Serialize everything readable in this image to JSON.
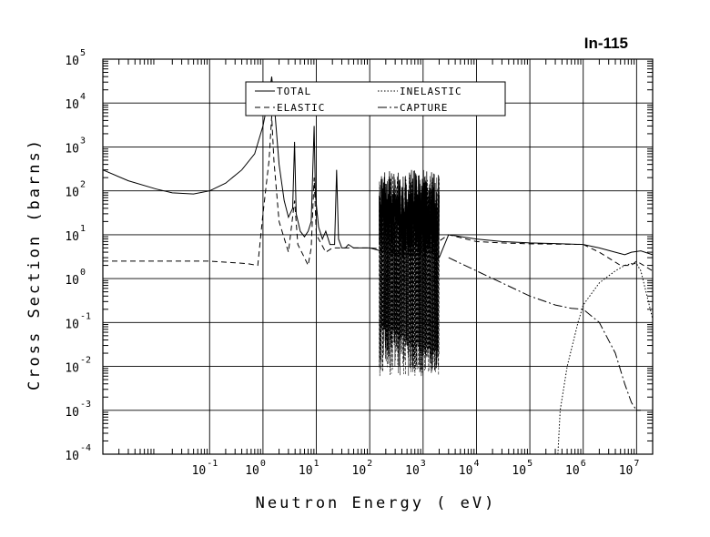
{
  "chart_data": {
    "type": "line",
    "title": "In-115",
    "xlabel": "Neutron Energy ( eV)",
    "ylabel": "Cross Section (barns)",
    "xscale": "log",
    "yscale": "log",
    "xlim": [
      0.001,
      20000000
    ],
    "ylim": [
      0.0001,
      100000
    ],
    "x_ticks": [
      {
        "base": "10",
        "exp": "-1",
        "value": 0.1
      },
      {
        "base": "10",
        "exp": "0",
        "value": 1
      },
      {
        "base": "10",
        "exp": "1",
        "value": 10
      },
      {
        "base": "10",
        "exp": "2",
        "value": 100
      },
      {
        "base": "10",
        "exp": "3",
        "value": 1000
      },
      {
        "base": "10",
        "exp": "4",
        "value": 10000
      },
      {
        "base": "10",
        "exp": "5",
        "value": 100000
      },
      {
        "base": "10",
        "exp": "6",
        "value": 1000000
      },
      {
        "base": "10",
        "exp": "7",
        "value": 10000000
      }
    ],
    "y_ticks": [
      {
        "base": "10",
        "exp": "5",
        "value": 100000
      },
      {
        "base": "10",
        "exp": "4",
        "value": 10000
      },
      {
        "base": "10",
        "exp": "3",
        "value": 1000
      },
      {
        "base": "10",
        "exp": "2",
        "value": 100
      },
      {
        "base": "10",
        "exp": "1",
        "value": 10
      },
      {
        "base": "10",
        "exp": "0",
        "value": 1
      },
      {
        "base": "10",
        "exp": "-1",
        "value": 0.1
      },
      {
        "base": "10",
        "exp": "-2",
        "value": 0.01
      },
      {
        "base": "10",
        "exp": "-3",
        "value": 0.001
      },
      {
        "base": "10",
        "exp": "-4",
        "value": 0.0001
      }
    ],
    "grid": true,
    "legend_position": "top",
    "legend": [
      {
        "label": "TOTAL",
        "dash": "solid"
      },
      {
        "label": "INELASTIC",
        "dash": "dotted"
      },
      {
        "label": "ELASTIC",
        "dash": "dashed"
      },
      {
        "label": "CAPTURE",
        "dash": "dash-dot"
      }
    ],
    "series": [
      {
        "name": "TOTAL",
        "dash": "solid",
        "points": [
          [
            0.001,
            300
          ],
          [
            0.003,
            170
          ],
          [
            0.01,
            110
          ],
          [
            0.02,
            90
          ],
          [
            0.05,
            85
          ],
          [
            0.1,
            100
          ],
          [
            0.2,
            150
          ],
          [
            0.4,
            300
          ],
          [
            0.7,
            700
          ],
          [
            1.0,
            3000
          ],
          [
            1.3,
            15000
          ],
          [
            1.46,
            40000
          ],
          [
            1.6,
            12000
          ],
          [
            2.0,
            400
          ],
          [
            2.5,
            60
          ],
          [
            3.0,
            25
          ],
          [
            3.6,
            40
          ],
          [
            3.9,
            1300
          ],
          [
            4.2,
            30
          ],
          [
            5,
            12
          ],
          [
            6,
            9
          ],
          [
            7,
            12
          ],
          [
            8,
            20
          ],
          [
            9.1,
            3000
          ],
          [
            9.6,
            80
          ],
          [
            11,
            15
          ],
          [
            13,
            8
          ],
          [
            15,
            12
          ],
          [
            18,
            6
          ],
          [
            22,
            6
          ],
          [
            24,
            300
          ],
          [
            26,
            8
          ],
          [
            30,
            5
          ],
          [
            35,
            5
          ],
          [
            40,
            6
          ],
          [
            50,
            5
          ],
          [
            60,
            5
          ],
          [
            80,
            5
          ],
          [
            100,
            5
          ],
          [
            200,
            4
          ],
          [
            2000,
            3
          ],
          [
            3000,
            10
          ],
          [
            10000,
            8
          ],
          [
            30000,
            7
          ],
          [
            100000,
            6.5
          ],
          [
            300000,
            6.3
          ],
          [
            1000000,
            6
          ],
          [
            2000000,
            5
          ],
          [
            4000000,
            4
          ],
          [
            6000000,
            3.5
          ],
          [
            8000000,
            4
          ],
          [
            12000000,
            4.3
          ],
          [
            20000000,
            3.5
          ]
        ]
      },
      {
        "name": "ELASTIC",
        "dash": "dashed",
        "points": [
          [
            0.001,
            2.5
          ],
          [
            0.1,
            2.5
          ],
          [
            0.5,
            2.2
          ],
          [
            0.8,
            2.0
          ],
          [
            1.0,
            30
          ],
          [
            1.3,
            500
          ],
          [
            1.46,
            5000
          ],
          [
            1.6,
            500
          ],
          [
            2.0,
            20
          ],
          [
            3.0,
            4
          ],
          [
            3.9,
            60
          ],
          [
            4.5,
            6
          ],
          [
            6,
            3
          ],
          [
            7,
            2
          ],
          [
            8,
            5
          ],
          [
            9.1,
            200
          ],
          [
            10,
            10
          ],
          [
            15,
            4
          ],
          [
            20,
            5
          ],
          [
            30,
            5
          ],
          [
            100,
            5
          ],
          [
            1000,
            4
          ],
          [
            3000,
            10
          ],
          [
            10000,
            7
          ],
          [
            30000,
            6.5
          ],
          [
            100000,
            6.2
          ],
          [
            300000,
            6.1
          ],
          [
            1000000,
            6
          ],
          [
            2000000,
            4
          ],
          [
            5000000,
            2
          ],
          [
            8000000,
            2
          ],
          [
            10000000,
            2.5
          ],
          [
            20000000,
            1.5
          ]
        ]
      },
      {
        "name": "CAPTURE",
        "dash": "dash-dot",
        "points": [
          [
            3000,
            3
          ],
          [
            10000,
            1.5
          ],
          [
            30000,
            0.8
          ],
          [
            100000,
            0.4
          ],
          [
            300000,
            0.25
          ],
          [
            600000,
            0.21
          ],
          [
            1000000,
            0.2
          ],
          [
            2000000,
            0.1
          ],
          [
            4000000,
            0.02
          ],
          [
            6000000,
            0.004
          ],
          [
            8000000,
            0.0015
          ],
          [
            10000000,
            0.001
          ],
          [
            12000000,
            0.001
          ]
        ]
      },
      {
        "name": "INELASTIC",
        "dash": "dotted",
        "points": [
          [
            336000,
            0.0001
          ],
          [
            370000,
            0.001
          ],
          [
            500000,
            0.01
          ],
          [
            800000,
            0.1
          ],
          [
            1000000,
            0.25
          ],
          [
            2000000,
            0.8
          ],
          [
            4000000,
            1.5
          ],
          [
            6000000,
            2
          ],
          [
            8000000,
            2.2
          ],
          [
            10000000,
            2.2
          ],
          [
            12000000,
            1.5
          ],
          [
            15000000,
            0.5
          ],
          [
            20000000,
            0.12
          ]
        ]
      }
    ],
    "resonance_region": {
      "x_range": [
        150,
        2000
      ],
      "total_peak_max": 300,
      "total_min": 3,
      "partial_min": 0.006
    }
  }
}
